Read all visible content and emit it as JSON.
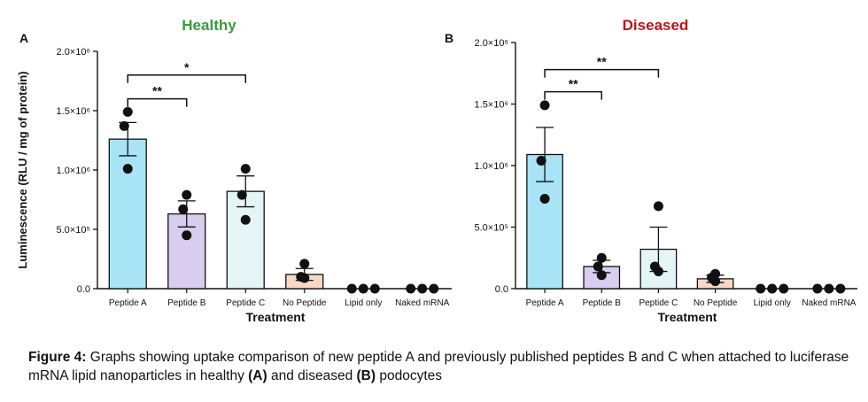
{
  "chart_data": [
    {
      "type": "bar",
      "panel_label": "A",
      "title": "Healthy",
      "title_color": "#3a9a3f",
      "ylabel": "Luminescence (RLU / mg of protein)",
      "xlabel": "Treatment",
      "ylim": [
        0,
        2000000
      ],
      "yticks": [
        {
          "value": 0,
          "label": "0.0"
        },
        {
          "value": 500000,
          "label": "5.0×10⁵"
        },
        {
          "value": 1000000,
          "label": "1.0×10⁶"
        },
        {
          "value": 1500000,
          "label": "1.5×10⁶"
        },
        {
          "value": 2000000,
          "label": "2.0×10⁶"
        }
      ],
      "categories": [
        "Peptide A",
        "Peptide B",
        "Peptide C",
        "No Peptide",
        "Lipid only",
        "Naked mRNA"
      ],
      "colors": [
        "#a8e3f6",
        "#d9cdf0",
        "#e4f5f5",
        "#f8d8c5",
        "#ffffff",
        "#ffffff"
      ],
      "values": [
        1260000,
        630000,
        820000,
        120000,
        0,
        0
      ],
      "errors": [
        140000,
        110000,
        130000,
        50000,
        0,
        0
      ],
      "points": [
        [
          1490000,
          1370000,
          1010000
        ],
        [
          790000,
          670000,
          450000
        ],
        [
          1010000,
          790000,
          580000
        ],
        [
          210000,
          100000,
          90000
        ],
        [
          0,
          0,
          0
        ],
        [
          0,
          0,
          0
        ]
      ],
      "significance": [
        {
          "from": 0,
          "to": 1,
          "label": "**",
          "y": 1600000
        },
        {
          "from": 0,
          "to": 2,
          "label": "*",
          "y": 1800000
        }
      ]
    },
    {
      "type": "bar",
      "panel_label": "B",
      "title": "Diseased",
      "title_color": "#c0121a",
      "ylabel": "",
      "xlabel": "Treatment",
      "ylim": [
        0,
        2000000
      ],
      "yticks": [
        {
          "value": 0,
          "label": "0.0"
        },
        {
          "value": 500000,
          "label": "5.0×10⁵"
        },
        {
          "value": 1000000,
          "label": "1.0×10⁶"
        },
        {
          "value": 1500000,
          "label": "1.5×10⁶"
        },
        {
          "value": 2000000,
          "label": "2.0×10⁶"
        }
      ],
      "categories": [
        "Peptide A",
        "Peptide B",
        "Peptide C",
        "No Peptide",
        "Lipid only",
        "Naked mRNA"
      ],
      "colors": [
        "#a8e3f6",
        "#d9cdf0",
        "#e4f5f5",
        "#f8d8c5",
        "#ffffff",
        "#ffffff"
      ],
      "values": [
        1090000,
        180000,
        320000,
        80000,
        0,
        0
      ],
      "errors": [
        220000,
        50000,
        180000,
        30000,
        0,
        0
      ],
      "points": [
        [
          1490000,
          1040000,
          730000
        ],
        [
          250000,
          180000,
          110000
        ],
        [
          670000,
          180000,
          140000
        ],
        [
          120000,
          90000,
          60000
        ],
        [
          0,
          0,
          0
        ],
        [
          0,
          0,
          0
        ]
      ],
      "significance": [
        {
          "from": 0,
          "to": 1,
          "label": "**",
          "y": 1600000
        },
        {
          "from": 0,
          "to": 2,
          "label": "**",
          "y": 1780000
        }
      ]
    }
  ],
  "caption": {
    "lead": "Figure 4:",
    "part1": " Graphs showing uptake comparison of new peptide A and previously published peptides B and C when attached to luciferase mRNA lipid nanoparticles in healthy ",
    "a": "(A)",
    "part2": " and diseased ",
    "b": "(B)",
    "part3": " podocytes"
  }
}
